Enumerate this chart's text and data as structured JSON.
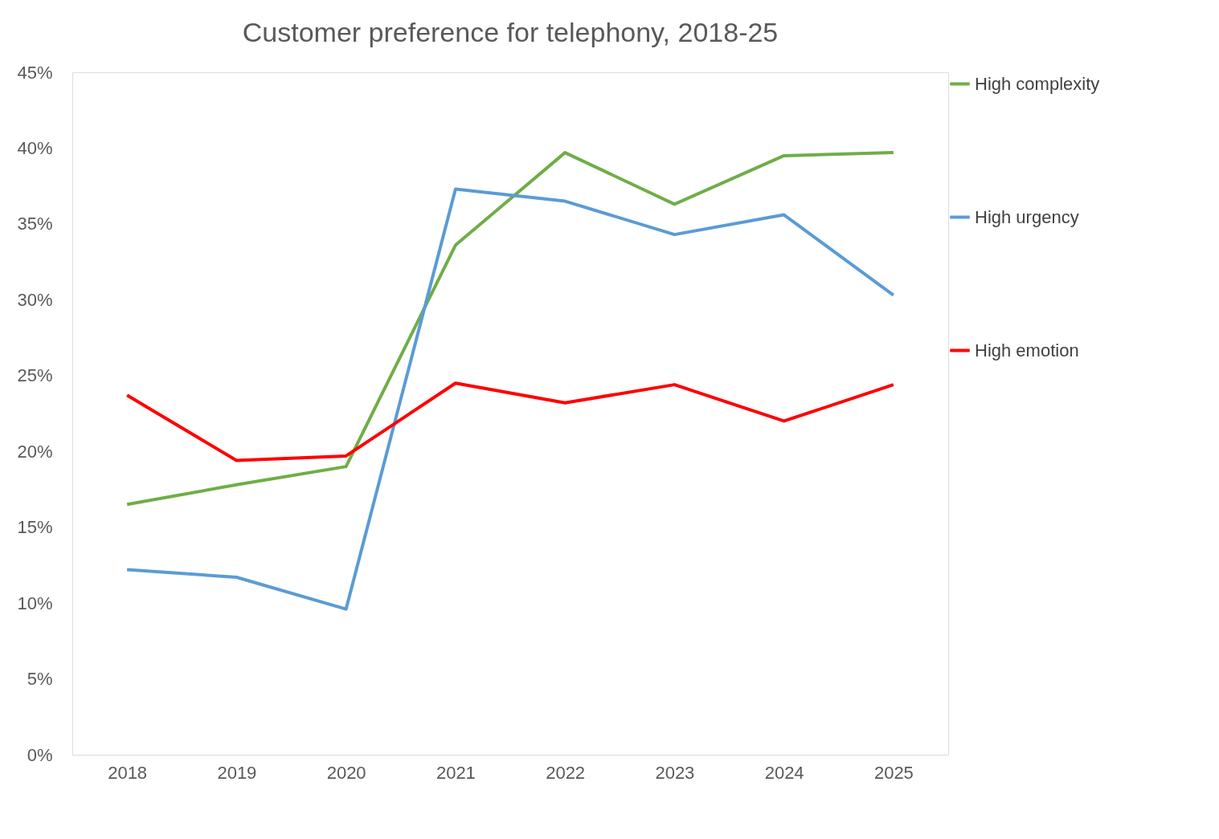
{
  "chart_data": {
    "type": "line",
    "title": "Customer preference for telephony, 2018-25",
    "categories": [
      "2018",
      "2019",
      "2020",
      "2021",
      "2022",
      "2023",
      "2024",
      "2025"
    ],
    "series": [
      {
        "name": "High complexity",
        "color": "#70ad47",
        "values": [
          16.5,
          17.8,
          19.0,
          33.6,
          39.7,
          36.3,
          39.5,
          39.7
        ]
      },
      {
        "name": "High urgency",
        "color": "#5b9bd5",
        "values": [
          12.2,
          11.7,
          9.6,
          37.3,
          36.5,
          34.3,
          35.6,
          30.3
        ]
      },
      {
        "name": "High emotion",
        "color": "#ff0000",
        "values": [
          23.7,
          19.4,
          19.7,
          24.5,
          23.2,
          24.4,
          22.0,
          24.4
        ]
      }
    ],
    "ylim": [
      0,
      45
    ],
    "yticks": [
      {
        "value": 0,
        "label": "0%"
      },
      {
        "value": 5,
        "label": "5%"
      },
      {
        "value": 10,
        "label": "10%"
      },
      {
        "value": 15,
        "label": "15%"
      },
      {
        "value": 20,
        "label": "20%"
      },
      {
        "value": 25,
        "label": "25%"
      },
      {
        "value": 30,
        "label": "30%"
      },
      {
        "value": 35,
        "label": "35%"
      },
      {
        "value": 40,
        "label": "40%"
      },
      {
        "value": 45,
        "label": "45%"
      }
    ],
    "grid": false,
    "legend": "right",
    "marker": "none",
    "line_style": "solid"
  }
}
